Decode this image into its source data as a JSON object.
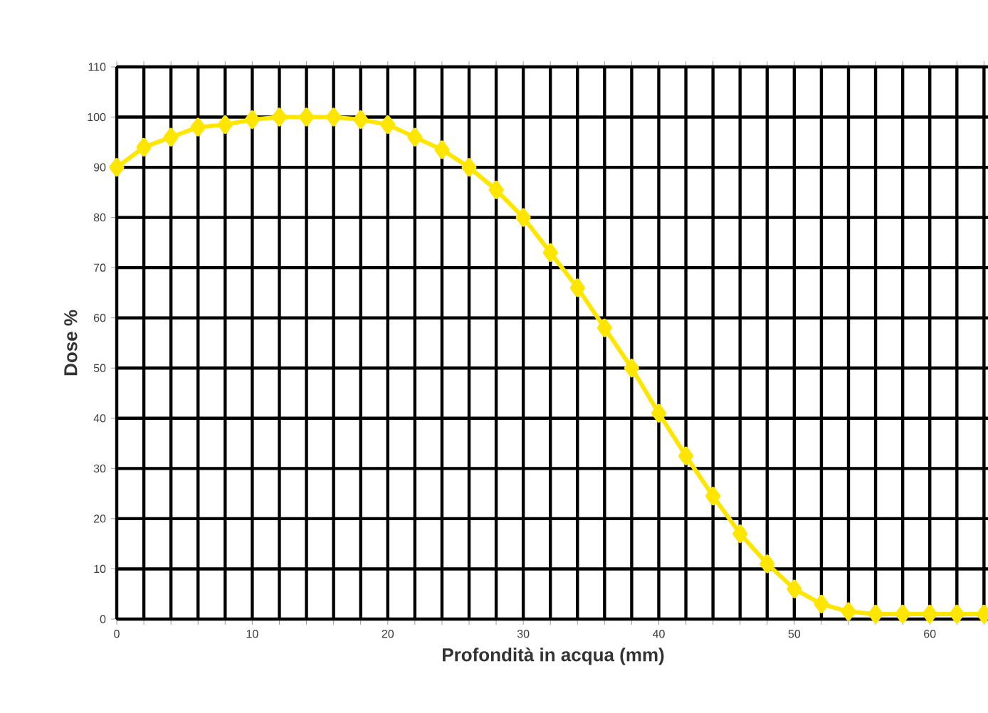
{
  "chart_data": {
    "type": "line",
    "xlabel": "Profondità in acqua (mm)",
    "ylabel": "Dose %",
    "x": [
      0,
      2,
      4,
      6,
      8,
      10,
      12,
      14,
      16,
      18,
      20,
      22,
      24,
      26,
      28,
      30,
      32,
      34,
      36,
      38,
      40,
      42,
      44,
      46,
      48,
      50,
      52,
      54,
      56,
      58,
      60,
      62,
      64
    ],
    "series": [
      {
        "color": "#ffe600",
        "values": [
          90,
          94,
          96,
          98,
          98.5,
          99.5,
          100,
          100,
          100,
          99.5,
          98.5,
          96,
          93.5,
          90,
          85.5,
          80,
          73,
          66,
          58,
          50,
          41,
          32.5,
          24.5,
          17,
          11,
          6,
          3,
          1.5,
          1,
          1,
          1,
          1,
          1
        ]
      }
    ],
    "xlim": [
      0,
      64.4
    ],
    "ylim": [
      0,
      110
    ],
    "xticks": [
      0,
      {
        "value": 2,
        "label": null
      },
      {
        "value": 4,
        "label": null
      },
      {
        "value": 6,
        "label": null
      },
      {
        "value": 8,
        "label": null
      },
      10,
      {
        "value": 12,
        "label": null
      },
      {
        "value": 14,
        "label": null
      },
      {
        "value": 16,
        "label": null
      },
      {
        "value": 18,
        "label": null
      },
      20,
      {
        "value": 22,
        "label": null
      },
      {
        "value": 24,
        "label": null
      },
      {
        "value": 26,
        "label": null
      },
      {
        "value": 28,
        "label": null
      },
      30,
      {
        "value": 32,
        "label": null
      },
      {
        "value": 34,
        "label": null
      },
      {
        "value": 36,
        "label": null
      },
      {
        "value": 38,
        "label": null
      },
      40,
      {
        "value": 42,
        "label": null
      },
      {
        "value": 44,
        "label": null
      },
      {
        "value": 46,
        "label": null
      },
      {
        "value": 48,
        "label": null
      },
      50,
      {
        "value": 52,
        "label": null
      },
      {
        "value": 54,
        "label": null
      },
      {
        "value": 56,
        "label": null
      },
      {
        "value": 58,
        "label": null
      },
      60,
      {
        "value": 62,
        "label": null
      },
      {
        "value": 64,
        "label": null
      }
    ],
    "yticks": [
      0,
      10,
      20,
      30,
      40,
      50,
      60,
      70,
      80,
      90,
      100,
      110
    ],
    "grid": true,
    "marker": "diamond",
    "line_style": "solid"
  }
}
